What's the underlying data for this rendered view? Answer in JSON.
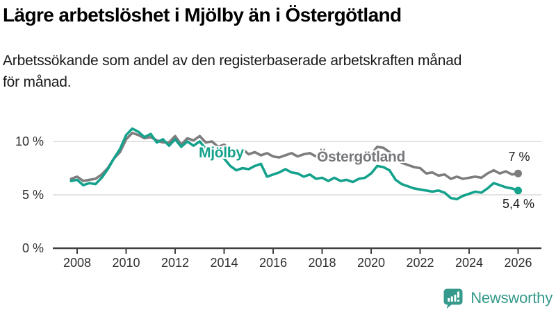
{
  "header": {
    "title": "Lägre arbetslöshet i Mjölby än i Östergötland",
    "subtitle_line1": "Arbetssökande som andel av den registerbaserade arbetskraften månad",
    "subtitle_line2": "för månad."
  },
  "chart_data": {
    "type": "line",
    "title": "Lägre arbetslöshet i Mjölby än i Östergötland",
    "subtitle": "Arbetssökande som andel av den registerbaserade arbetskraften månad för månad.",
    "xlabel": "",
    "ylabel": "",
    "x_range": [
      2007.75,
      2026
    ],
    "ylim": [
      0,
      11.7
    ],
    "x_ticks": [
      2008,
      2010,
      2012,
      2014,
      2016,
      2018,
      2020,
      2022,
      2024,
      2026
    ],
    "y_ticks": [
      {
        "value": 10,
        "label": "10 %"
      },
      {
        "value": 5,
        "label": "5 %"
      },
      {
        "value": 0,
        "label": "0 %"
      }
    ],
    "gridlines_at": [
      10,
      5
    ],
    "legend_position": "inline-labels",
    "x": [
      2007.75,
      2008,
      2008.25,
      2008.5,
      2008.75,
      2009,
      2009.25,
      2009.5,
      2009.75,
      2010,
      2010.25,
      2010.5,
      2010.75,
      2011,
      2011.25,
      2011.5,
      2011.75,
      2012,
      2012.25,
      2012.5,
      2012.75,
      2013,
      2013.25,
      2013.5,
      2013.75,
      2014,
      2014.25,
      2014.5,
      2014.75,
      2015,
      2015.25,
      2015.5,
      2015.75,
      2016,
      2016.25,
      2016.5,
      2016.75,
      2017,
      2017.25,
      2017.5,
      2017.75,
      2018,
      2018.25,
      2018.5,
      2018.75,
      2019,
      2019.25,
      2019.5,
      2019.75,
      2020,
      2020.25,
      2020.5,
      2020.75,
      2021,
      2021.25,
      2021.5,
      2021.75,
      2022,
      2022.25,
      2022.5,
      2022.75,
      2023,
      2023.25,
      2023.5,
      2023.75,
      2024,
      2024.25,
      2024.5,
      2024.75,
      2025,
      2025.25,
      2025.5,
      2025.75,
      2026
    ],
    "series": [
      {
        "id": "mjolby",
        "name": "Mjölby",
        "color": "#14a28c",
        "end_label": "5,4 %",
        "end_value": 5.4,
        "values": [
          6.3,
          6.4,
          5.9,
          6.1,
          6.0,
          6.6,
          7.4,
          8.4,
          9.3,
          10.6,
          11.2,
          10.9,
          10.4,
          10.7,
          9.9,
          10.2,
          9.6,
          10.2,
          9.5,
          10.0,
          9.6,
          10.0,
          9.3,
          9.5,
          9.0,
          8.4,
          7.7,
          7.3,
          7.5,
          7.4,
          7.7,
          7.9,
          6.7,
          6.9,
          7.1,
          7.4,
          7.1,
          7.0,
          6.7,
          6.9,
          6.5,
          6.6,
          6.3,
          6.6,
          6.3,
          6.4,
          6.2,
          6.5,
          6.6,
          7.0,
          7.7,
          7.6,
          7.3,
          6.4,
          6.0,
          5.8,
          5.6,
          5.5,
          5.4,
          5.3,
          5.4,
          5.2,
          4.7,
          4.6,
          4.9,
          5.1,
          5.3,
          5.2,
          5.6,
          6.1,
          5.9,
          5.7,
          5.6,
          5.4
        ]
      },
      {
        "id": "ostergotland",
        "name": "Östergötland",
        "color": "#7d7d7d",
        "end_label": "7 %",
        "end_value": 7.0,
        "values": [
          6.5,
          6.7,
          6.3,
          6.4,
          6.5,
          6.9,
          7.5,
          8.4,
          9.0,
          10.2,
          10.8,
          10.6,
          10.3,
          10.4,
          10.1,
          9.9,
          9.9,
          10.5,
          9.7,
          10.3,
          10.1,
          10.5,
          9.9,
          10.0,
          9.5,
          9.7,
          9.2,
          9.0,
          9.3,
          8.8,
          9.0,
          8.7,
          8.9,
          8.6,
          8.5,
          8.7,
          8.9,
          8.6,
          8.8,
          8.9,
          8.6,
          8.7,
          8.4,
          8.5,
          8.3,
          8.2,
          8.3,
          8.4,
          8.6,
          8.8,
          9.5,
          9.4,
          9.0,
          8.5,
          8.0,
          7.8,
          7.6,
          7.5,
          7.0,
          7.1,
          6.8,
          6.9,
          6.5,
          6.7,
          6.5,
          6.6,
          6.7,
          6.6,
          7.0,
          7.3,
          7.0,
          7.2,
          6.9,
          7.0
        ]
      }
    ]
  },
  "colors": {
    "grid": "#dadada",
    "axis": "#3f3f3f",
    "tick_text": "#303030",
    "end_label_text": "#1c1c1c"
  },
  "branding": {
    "name": "Newsworthy",
    "color": "#359a8b"
  }
}
